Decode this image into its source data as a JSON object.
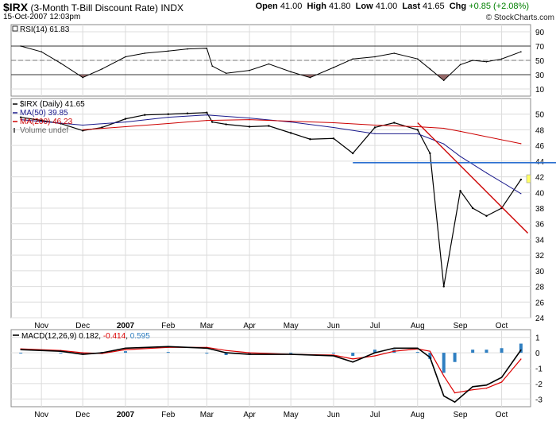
{
  "header": {
    "symbol": "$IRX",
    "name": "(3-Month T-Bill Discount Rate)",
    "exchange": "INDX",
    "datetime": "15-Oct-2007 12:03pm",
    "open_label": "Open",
    "open": "41.00",
    "high_label": "High",
    "high": "41.80",
    "low_label": "Low",
    "low": "41.00",
    "last_label": "Last",
    "last": "41.65",
    "chg_label": "Chg",
    "chg": "+0.85 (+2.08%)",
    "credit": "© StockCharts.com",
    "chg_color": "#008000"
  },
  "chart_data": [
    {
      "type": "line",
      "panel": "rsi",
      "legend": "RSI(14) 61.83",
      "ylim": [
        0,
        100
      ],
      "yticks": [
        10,
        30,
        50,
        70,
        90
      ],
      "reference_lines": [
        30,
        50,
        70
      ],
      "x": [
        "Oct 17",
        "Nov 1",
        "Nov 15",
        "Dec 1",
        "Dec 15",
        "Jan 1",
        "Jan 15",
        "Feb 1",
        "Feb 15",
        "Mar 1",
        "Mar 5",
        "Mar 15",
        "Apr 1",
        "Apr 15",
        "May 1",
        "May 15",
        "Jun 1",
        "Jun 15",
        "Jul 1",
        "Jul 15",
        "Aug 1",
        "Aug 10",
        "Aug 20",
        "Sep 1",
        "Sep 10",
        "Sep 20",
        "Oct 1",
        "Oct 15"
      ],
      "values": [
        70,
        62,
        46,
        26,
        38,
        55,
        60,
        63,
        66,
        67,
        42,
        32,
        36,
        45,
        34,
        26,
        40,
        52,
        55,
        60,
        52,
        38,
        22,
        44,
        50,
        48,
        52,
        62
      ],
      "colors": {
        "line": "#000000",
        "overbought": "#1a1a1a",
        "oversold": "#8b5a5a",
        "grid": "#999999"
      }
    },
    {
      "type": "line",
      "panel": "price",
      "title": "$IRX (Daily) 41.65",
      "ylim": [
        24,
        52
      ],
      "yticks": [
        24,
        26,
        28,
        30,
        32,
        34,
        36,
        38,
        40,
        42,
        44,
        46,
        48,
        50
      ],
      "x_labels": [
        "Nov",
        "Dec",
        "2007",
        "Feb",
        "Mar",
        "Apr",
        "May",
        "Jun",
        "Jul",
        "Aug",
        "Sep",
        "Oct"
      ],
      "series": [
        {
          "name": "$IRX (Daily) 41.65",
          "color": "#000000",
          "x": [
            "Oct 17",
            "Nov 1",
            "Nov 15",
            "Dec 1",
            "Dec 15",
            "Jan 1",
            "Jan 15",
            "Feb 1",
            "Feb 15",
            "Mar 1",
            "Mar 5",
            "Mar 15",
            "Apr 1",
            "Apr 15",
            "May 1",
            "May 15",
            "Jun 1",
            "Jun 15",
            "Jul 1",
            "Jul 15",
            "Aug 1",
            "Aug 10",
            "Aug 20",
            "Sep 1",
            "Sep 10",
            "Sep 20",
            "Oct 1",
            "Oct 15"
          ],
          "values": [
            49.6,
            49.2,
            48.8,
            47.9,
            48.3,
            49.4,
            49.9,
            50.0,
            50.1,
            50.2,
            49.0,
            48.7,
            48.4,
            48.5,
            47.6,
            46.8,
            46.9,
            45.0,
            48.3,
            48.9,
            48.0,
            45.0,
            28.0,
            40.2,
            38.0,
            37.0,
            38.0,
            41.65
          ]
        },
        {
          "name": "MA(50) 39.85",
          "color": "#1a1a8c",
          "x": [
            "Oct 17",
            "Dec 1",
            "Jan 1",
            "Feb 1",
            "Mar 1",
            "Apr 1",
            "May 1",
            "Jun 1",
            "Jul 1",
            "Aug 1",
            "Aug 20",
            "Sep 1",
            "Sep 20",
            "Oct 15"
          ],
          "values": [
            49.3,
            48.6,
            49.0,
            49.6,
            49.9,
            49.5,
            49.0,
            48.3,
            47.5,
            47.5,
            46.2,
            44.6,
            42.5,
            39.85
          ]
        },
        {
          "name": "MA(200) 46.23",
          "color": "#cc0000",
          "x": [
            "Dec 1",
            "Jan 1",
            "Feb 1",
            "Mar 1",
            "Apr 1",
            "May 1",
            "Jun 1",
            "Jul 1",
            "Aug 1",
            "Aug 20",
            "Sep 1",
            "Oct 15"
          ],
          "values": [
            48.0,
            48.4,
            48.8,
            49.2,
            49.3,
            49.1,
            48.9,
            48.6,
            48.4,
            48.2,
            47.8,
            46.23
          ]
        },
        {
          "name": "Volume undef",
          "color": "#666666",
          "x": [],
          "values": []
        }
      ],
      "annotations": {
        "horizontal_line": {
          "value": 43.8,
          "from": "Jun 15",
          "color": "#2a6fd0"
        },
        "trend_line": {
          "from": [
            "Aug 1",
            48.9
          ],
          "to": [
            "Oct 20",
            34.8
          ],
          "color": "#cc0000"
        }
      }
    },
    {
      "type": "line",
      "panel": "macd",
      "legend": {
        "label": "MACD(12,26,9)",
        "macd": "0.182",
        "signal": "-0.414",
        "hist": "0.595"
      },
      "ylim": [
        -3.5,
        1.5
      ],
      "yticks": [
        -3,
        -2,
        -1,
        0,
        1
      ],
      "x_labels": [
        "Nov",
        "Dec",
        "2007",
        "Feb",
        "Mar",
        "Apr",
        "May",
        "Jun",
        "Jul",
        "Aug",
        "Sep",
        "Oct"
      ],
      "series": [
        {
          "name": "MACD(12,26,9) 0.182",
          "color": "#000000",
          "x": [
            "Oct 17",
            "Nov 15",
            "Dec 1",
            "Dec 15",
            "Jan 1",
            "Feb 1",
            "Mar 1",
            "Mar 15",
            "Apr 1",
            "May 1",
            "Jun 1",
            "Jun 15",
            "Jul 1",
            "Jul 15",
            "Aug 1",
            "Aug 10",
            "Aug 20",
            "Aug 28",
            "Sep 10",
            "Sep 20",
            "Oct 1",
            "Oct 15"
          ],
          "values": [
            0.2,
            0.1,
            -0.1,
            0.0,
            0.3,
            0.4,
            0.3,
            0.0,
            -0.1,
            -0.1,
            -0.2,
            -0.6,
            0.0,
            0.3,
            0.3,
            -0.3,
            -2.8,
            -3.2,
            -2.2,
            -2.1,
            -1.6,
            0.18
          ]
        },
        {
          "name": "-0.414",
          "color": "#dd0000",
          "x": [
            "Oct 17",
            "Nov 15",
            "Dec 1",
            "Dec 15",
            "Jan 1",
            "Feb 1",
            "Mar 1",
            "Mar 15",
            "Apr 1",
            "May 1",
            "Jun 1",
            "Jun 15",
            "Jul 1",
            "Jul 15",
            "Aug 1",
            "Aug 10",
            "Aug 20",
            "Aug 28",
            "Sep 10",
            "Sep 20",
            "Oct 1",
            "Oct 15"
          ],
          "values": [
            0.25,
            0.15,
            0.0,
            -0.05,
            0.2,
            0.35,
            0.35,
            0.15,
            0.0,
            -0.1,
            -0.15,
            -0.4,
            -0.2,
            0.1,
            0.25,
            0.1,
            -1.5,
            -2.6,
            -2.4,
            -2.3,
            -1.9,
            -0.41
          ]
        },
        {
          "name": "0.595",
          "color": "#2f7fc1",
          "kind": "histogram",
          "x": [
            "Oct 17",
            "Nov 15",
            "Dec 1",
            "Dec 15",
            "Jan 1",
            "Feb 1",
            "Mar 1",
            "Mar 15",
            "Apr 1",
            "May 1",
            "Jun 1",
            "Jun 15",
            "Jul 1",
            "Jul 15",
            "Aug 1",
            "Aug 10",
            "Aug 20",
            "Aug 28",
            "Sep 10",
            "Sep 20",
            "Oct 1",
            "Oct 15"
          ],
          "values": [
            -0.05,
            -0.05,
            -0.1,
            0.05,
            0.1,
            0.05,
            -0.05,
            -0.15,
            -0.1,
            0.0,
            -0.05,
            -0.2,
            0.2,
            0.2,
            0.05,
            -0.4,
            -1.3,
            -0.6,
            0.2,
            0.2,
            0.3,
            0.595
          ]
        }
      ]
    }
  ]
}
